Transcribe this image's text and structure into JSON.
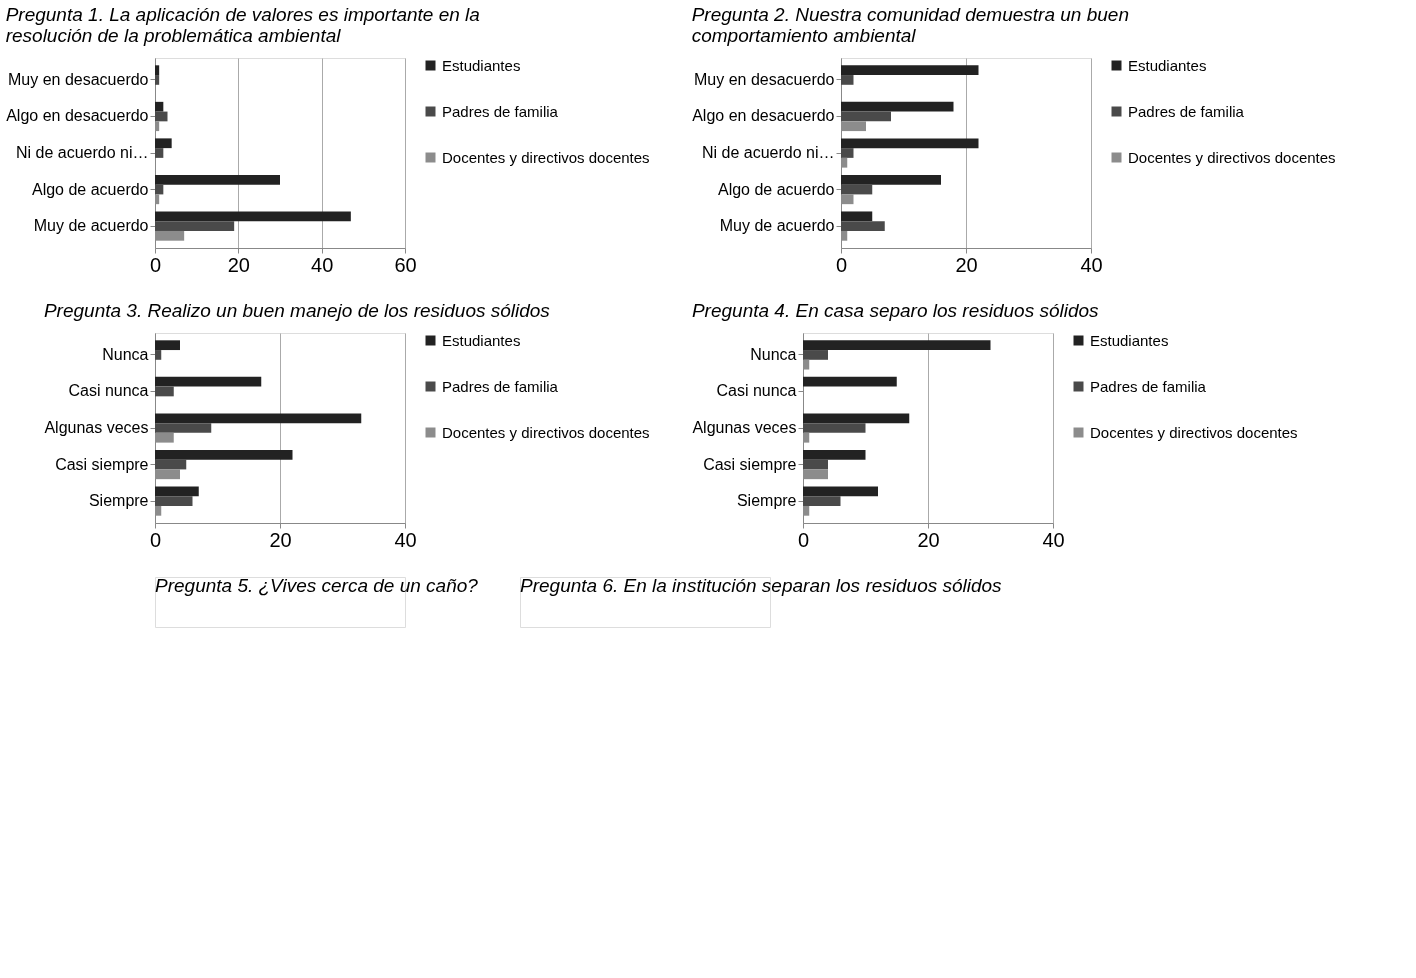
{
  "chart_data": [
    {
      "type": "bar",
      "orientation": "horizontal",
      "title": "Pregunta 1. La aplicación de valores es importante en la resolución de la problemática ambiental",
      "categories": [
        "Muy en desacuerdo",
        "Algo en desacuerdo",
        "Ni de acuerdo ni…",
        "Algo de acuerdo",
        "Muy de acuerdo"
      ],
      "xlim": [
        0,
        60
      ],
      "xticks": [
        0,
        20,
        40,
        60
      ],
      "grid": "x",
      "legend": "right",
      "series": [
        {
          "name": "Estudiantes",
          "color": "#222222",
          "values": [
            1,
            2,
            4,
            30,
            47
          ]
        },
        {
          "name": "Padres de familia",
          "color": "#4a4a4a",
          "values": [
            1,
            3,
            2,
            2,
            19
          ]
        },
        {
          "name": "Docentes y directivos docentes",
          "color": "#8c8c8c",
          "values": [
            0,
            1,
            0,
            1,
            7
          ]
        }
      ]
    },
    {
      "type": "bar",
      "orientation": "horizontal",
      "title": "Pregunta 2. Nuestra comunidad demuestra un buen comportamiento ambiental",
      "categories": [
        "Muy en desacuerdo",
        "Algo en desacuerdo",
        "Ni de acuerdo ni…",
        "Algo de acuerdo",
        "Muy de acuerdo"
      ],
      "xlim": [
        0,
        40
      ],
      "xticks": [
        0,
        20,
        40
      ],
      "grid": "x",
      "legend": "right",
      "series": [
        {
          "name": "Estudiantes",
          "color": "#222222",
          "values": [
            22,
            18,
            22,
            16,
            5
          ]
        },
        {
          "name": "Padres de familia",
          "color": "#4a4a4a",
          "values": [
            2,
            8,
            2,
            5,
            7
          ]
        },
        {
          "name": "Docentes y directivos docentes",
          "color": "#8c8c8c",
          "values": [
            0,
            4,
            1,
            2,
            1
          ]
        }
      ]
    },
    {
      "type": "bar",
      "orientation": "horizontal",
      "title": "Pregunta 3. Realizo un buen manejo de los residuos sólidos",
      "categories": [
        "Nunca",
        "Casi nunca",
        "Algunas veces",
        "Casi siempre",
        "Siempre"
      ],
      "xlim": [
        0,
        40
      ],
      "xticks": [
        0,
        20,
        40
      ],
      "grid": "x",
      "legend": "right",
      "series": [
        {
          "name": "Estudiantes",
          "color": "#222222",
          "values": [
            4,
            17,
            33,
            22,
            7
          ]
        },
        {
          "name": "Padres de familia",
          "color": "#4a4a4a",
          "values": [
            1,
            3,
            9,
            5,
            6
          ]
        },
        {
          "name": "Docentes y directivos docentes",
          "color": "#8c8c8c",
          "values": [
            0,
            0,
            3,
            4,
            1
          ]
        }
      ]
    },
    {
      "type": "bar",
      "orientation": "horizontal",
      "title": "Pregunta 4. En casa separo los residuos sólidos",
      "categories": [
        "Nunca",
        "Casi nunca",
        "Algunas veces",
        "Casi siempre",
        "Siempre"
      ],
      "xlim": [
        0,
        40
      ],
      "xticks": [
        0,
        20,
        40
      ],
      "grid": "x",
      "legend": "right",
      "series": [
        {
          "name": "Estudiantes",
          "color": "#222222",
          "values": [
            30,
            15,
            17,
            10,
            12
          ]
        },
        {
          "name": "Padres de familia",
          "color": "#4a4a4a",
          "values": [
            4,
            0,
            10,
            4,
            6
          ]
        },
        {
          "name": "Docentes y directivos docentes",
          "color": "#8c8c8c",
          "values": [
            1,
            0,
            1,
            4,
            1
          ]
        }
      ]
    },
    {
      "type": "other",
      "title": "Pregunta 5. ¿Vives cerca de un caño?"
    },
    {
      "type": "other",
      "title": "Pregunta 6. En la institución separan los residuos sólidos"
    }
  ]
}
